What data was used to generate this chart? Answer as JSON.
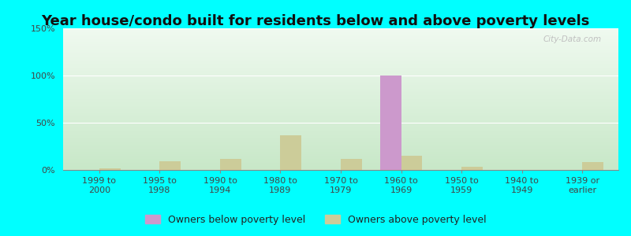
{
  "title": "Year house/condo built for residents below and above poverty levels",
  "categories": [
    "1999 to\n2000",
    "1995 to\n1998",
    "1990 to\n1994",
    "1980 to\n1989",
    "1970 to\n1979",
    "1960 to\n1969",
    "1950 to\n1959",
    "1940 to\n1949",
    "1939 or\nearlier"
  ],
  "below_poverty": [
    0,
    0,
    0,
    0,
    0,
    100,
    0,
    0,
    0
  ],
  "above_poverty": [
    2,
    9,
    12,
    37,
    12,
    15,
    3,
    0,
    8
  ],
  "below_color": "#cc99cc",
  "above_color": "#cccc99",
  "background_color": "#00ffff",
  "ylim": [
    0,
    150
  ],
  "yticks": [
    0,
    50,
    100,
    150
  ],
  "bar_width": 0.35,
  "legend_below": "Owners below poverty level",
  "legend_above": "Owners above poverty level",
  "title_fontsize": 13,
  "tick_fontsize": 8,
  "legend_fontsize": 9,
  "watermark": "City-Data.com",
  "plot_grad_top": "#c8e8c8",
  "plot_grad_bottom": "#f0faf0"
}
